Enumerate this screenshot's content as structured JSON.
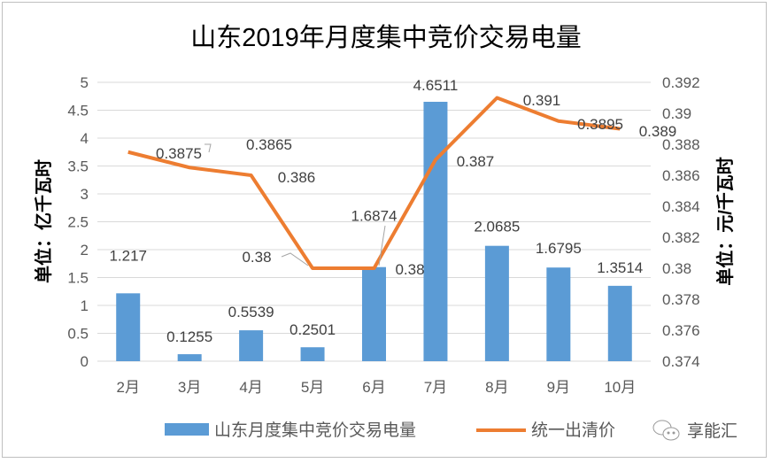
{
  "chart_data": {
    "type": "bar+line",
    "title": "山东2019年月度集中竞价交易电量",
    "categories": [
      "2月",
      "3月",
      "4月",
      "5月",
      "6月",
      "7月",
      "8月",
      "9月",
      "10月"
    ],
    "series": [
      {
        "name": "山东月度集中竞价交易电量",
        "type": "bar",
        "axis": "left",
        "color": "#5B9BD5",
        "values": [
          1.217,
          0.1255,
          0.5539,
          0.2501,
          1.6874,
          4.6511,
          2.0685,
          1.6795,
          1.3514
        ]
      },
      {
        "name": "统一出清价",
        "type": "line",
        "axis": "right",
        "color": "#ED7D31",
        "values": [
          0.3875,
          0.3865,
          0.386,
          0.38,
          0.38,
          0.387,
          0.391,
          0.3895,
          0.389
        ]
      }
    ],
    "ylabel": "单位：亿千瓦时",
    "y2label": "单位：元/千瓦时",
    "ylim": [
      0,
      5
    ],
    "yticks": [
      "0",
      "0.5",
      "1",
      "1.5",
      "2",
      "2.5",
      "3",
      "3.5",
      "4",
      "4.5",
      "5"
    ],
    "y2lim": [
      0.374,
      0.392
    ],
    "y2ticks": [
      "0.374",
      "0.376",
      "0.378",
      "0.38",
      "0.382",
      "0.384",
      "0.386",
      "0.388",
      "0.39",
      "0.392"
    ],
    "bar_labels": [
      "1.217",
      "0.1255",
      "0.5539",
      "0.2501",
      "1.6874",
      "4.6511",
      "2.0685",
      "1.6795",
      "1.3514"
    ],
    "line_labels": [
      "0.3875",
      "0.3865",
      "0.386",
      "0.38",
      "0.38",
      "0.387",
      "0.391",
      "0.3895",
      "0.389"
    ],
    "grid": true,
    "legend": "bottom"
  },
  "watermark": {
    "text": "享能汇",
    "icon": "wechat-icon"
  }
}
